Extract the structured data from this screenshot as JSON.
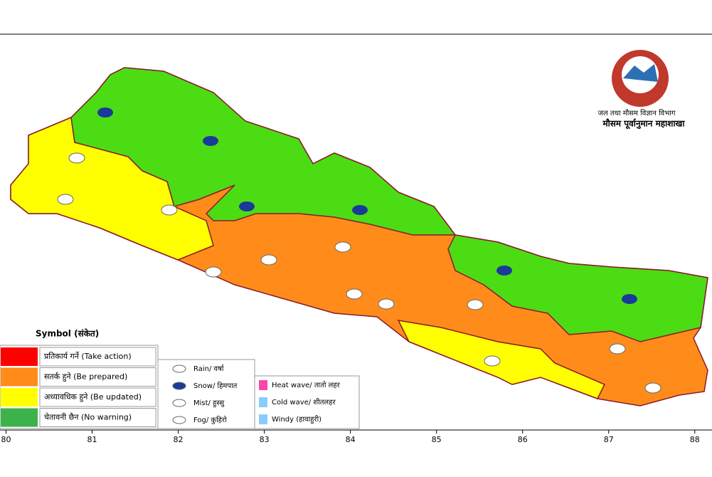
{
  "header": {
    "department": "जल तथा मौसम विज्ञान विभाग",
    "division": "मौसम पूर्वानुमान महाशाखा"
  },
  "legend": {
    "title": "Symbol (संकेत)",
    "warnings": [
      {
        "label": "प्रतिकार्य गर्ने (Take action)",
        "color": "#ff0000"
      },
      {
        "label": "सतर्क हुने (Be prepared)",
        "color": "#ff8c1a"
      },
      {
        "label": "अध्यावधिक हुने (Be updated)",
        "color": "#ffff00"
      },
      {
        "label": "चेतावनी छैन (No warning)",
        "color": "#3cb34a"
      }
    ],
    "symbols": [
      "Rain/ वर्षा",
      "Snow/ हिमपात",
      "Mist/ हुस्सु",
      "Fog/ कुहिरो"
    ],
    "symbols2": [
      "Heat wave/ तातो लहर",
      "Cold wave/ शीतलहर",
      "Windy (हावाहुरी)"
    ]
  },
  "axis": {
    "xlim": [
      79.93,
      88.2
    ],
    "xticks": [
      80,
      81,
      82,
      83,
      84,
      85,
      86,
      87,
      88
    ]
  }
}
